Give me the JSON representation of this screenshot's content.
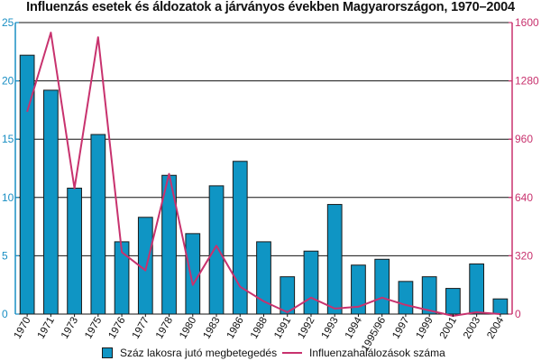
{
  "chart_data": {
    "type": "bar",
    "title": "Influenzás esetek és áldozatok a járványos években Magyarországon, 1970–2004",
    "categories": [
      "1970",
      "1971",
      "1973",
      "1975",
      "1976",
      "1977",
      "1978",
      "1980",
      "1983",
      "1986",
      "1988",
      "1991",
      "1992",
      "1993",
      "1994",
      "1995/96",
      "1997",
      "1999",
      "2001",
      "2003",
      "2004"
    ],
    "series": [
      {
        "name": "Száz lakosra jutó megbetegedés",
        "type": "bar",
        "axis": "left",
        "color": "#0f95c4",
        "values": [
          22.2,
          19.2,
          10.8,
          15.4,
          6.2,
          8.3,
          11.9,
          6.9,
          11.0,
          13.1,
          6.2,
          3.2,
          5.4,
          9.4,
          4.2,
          4.7,
          2.8,
          3.2,
          2.2,
          4.3,
          1.3
        ]
      },
      {
        "name": "Influenzahalálozások száma",
        "type": "line",
        "axis": "right",
        "color": "#c8326e",
        "values": [
          1110,
          1545,
          690,
          1520,
          340,
          240,
          770,
          160,
          375,
          150,
          70,
          10,
          90,
          30,
          40,
          90,
          50,
          20,
          -10,
          10,
          0
        ]
      }
    ],
    "y_left": {
      "ylim": [
        0,
        25
      ],
      "ticks": [
        "0",
        "5",
        "10",
        "15",
        "20",
        "25"
      ]
    },
    "y_right": {
      "ylim": [
        0,
        1600
      ],
      "ticks": [
        "0",
        "320",
        "640",
        "960",
        "1280",
        "1600"
      ]
    },
    "grid": "horizontal",
    "legend": "bottom"
  }
}
